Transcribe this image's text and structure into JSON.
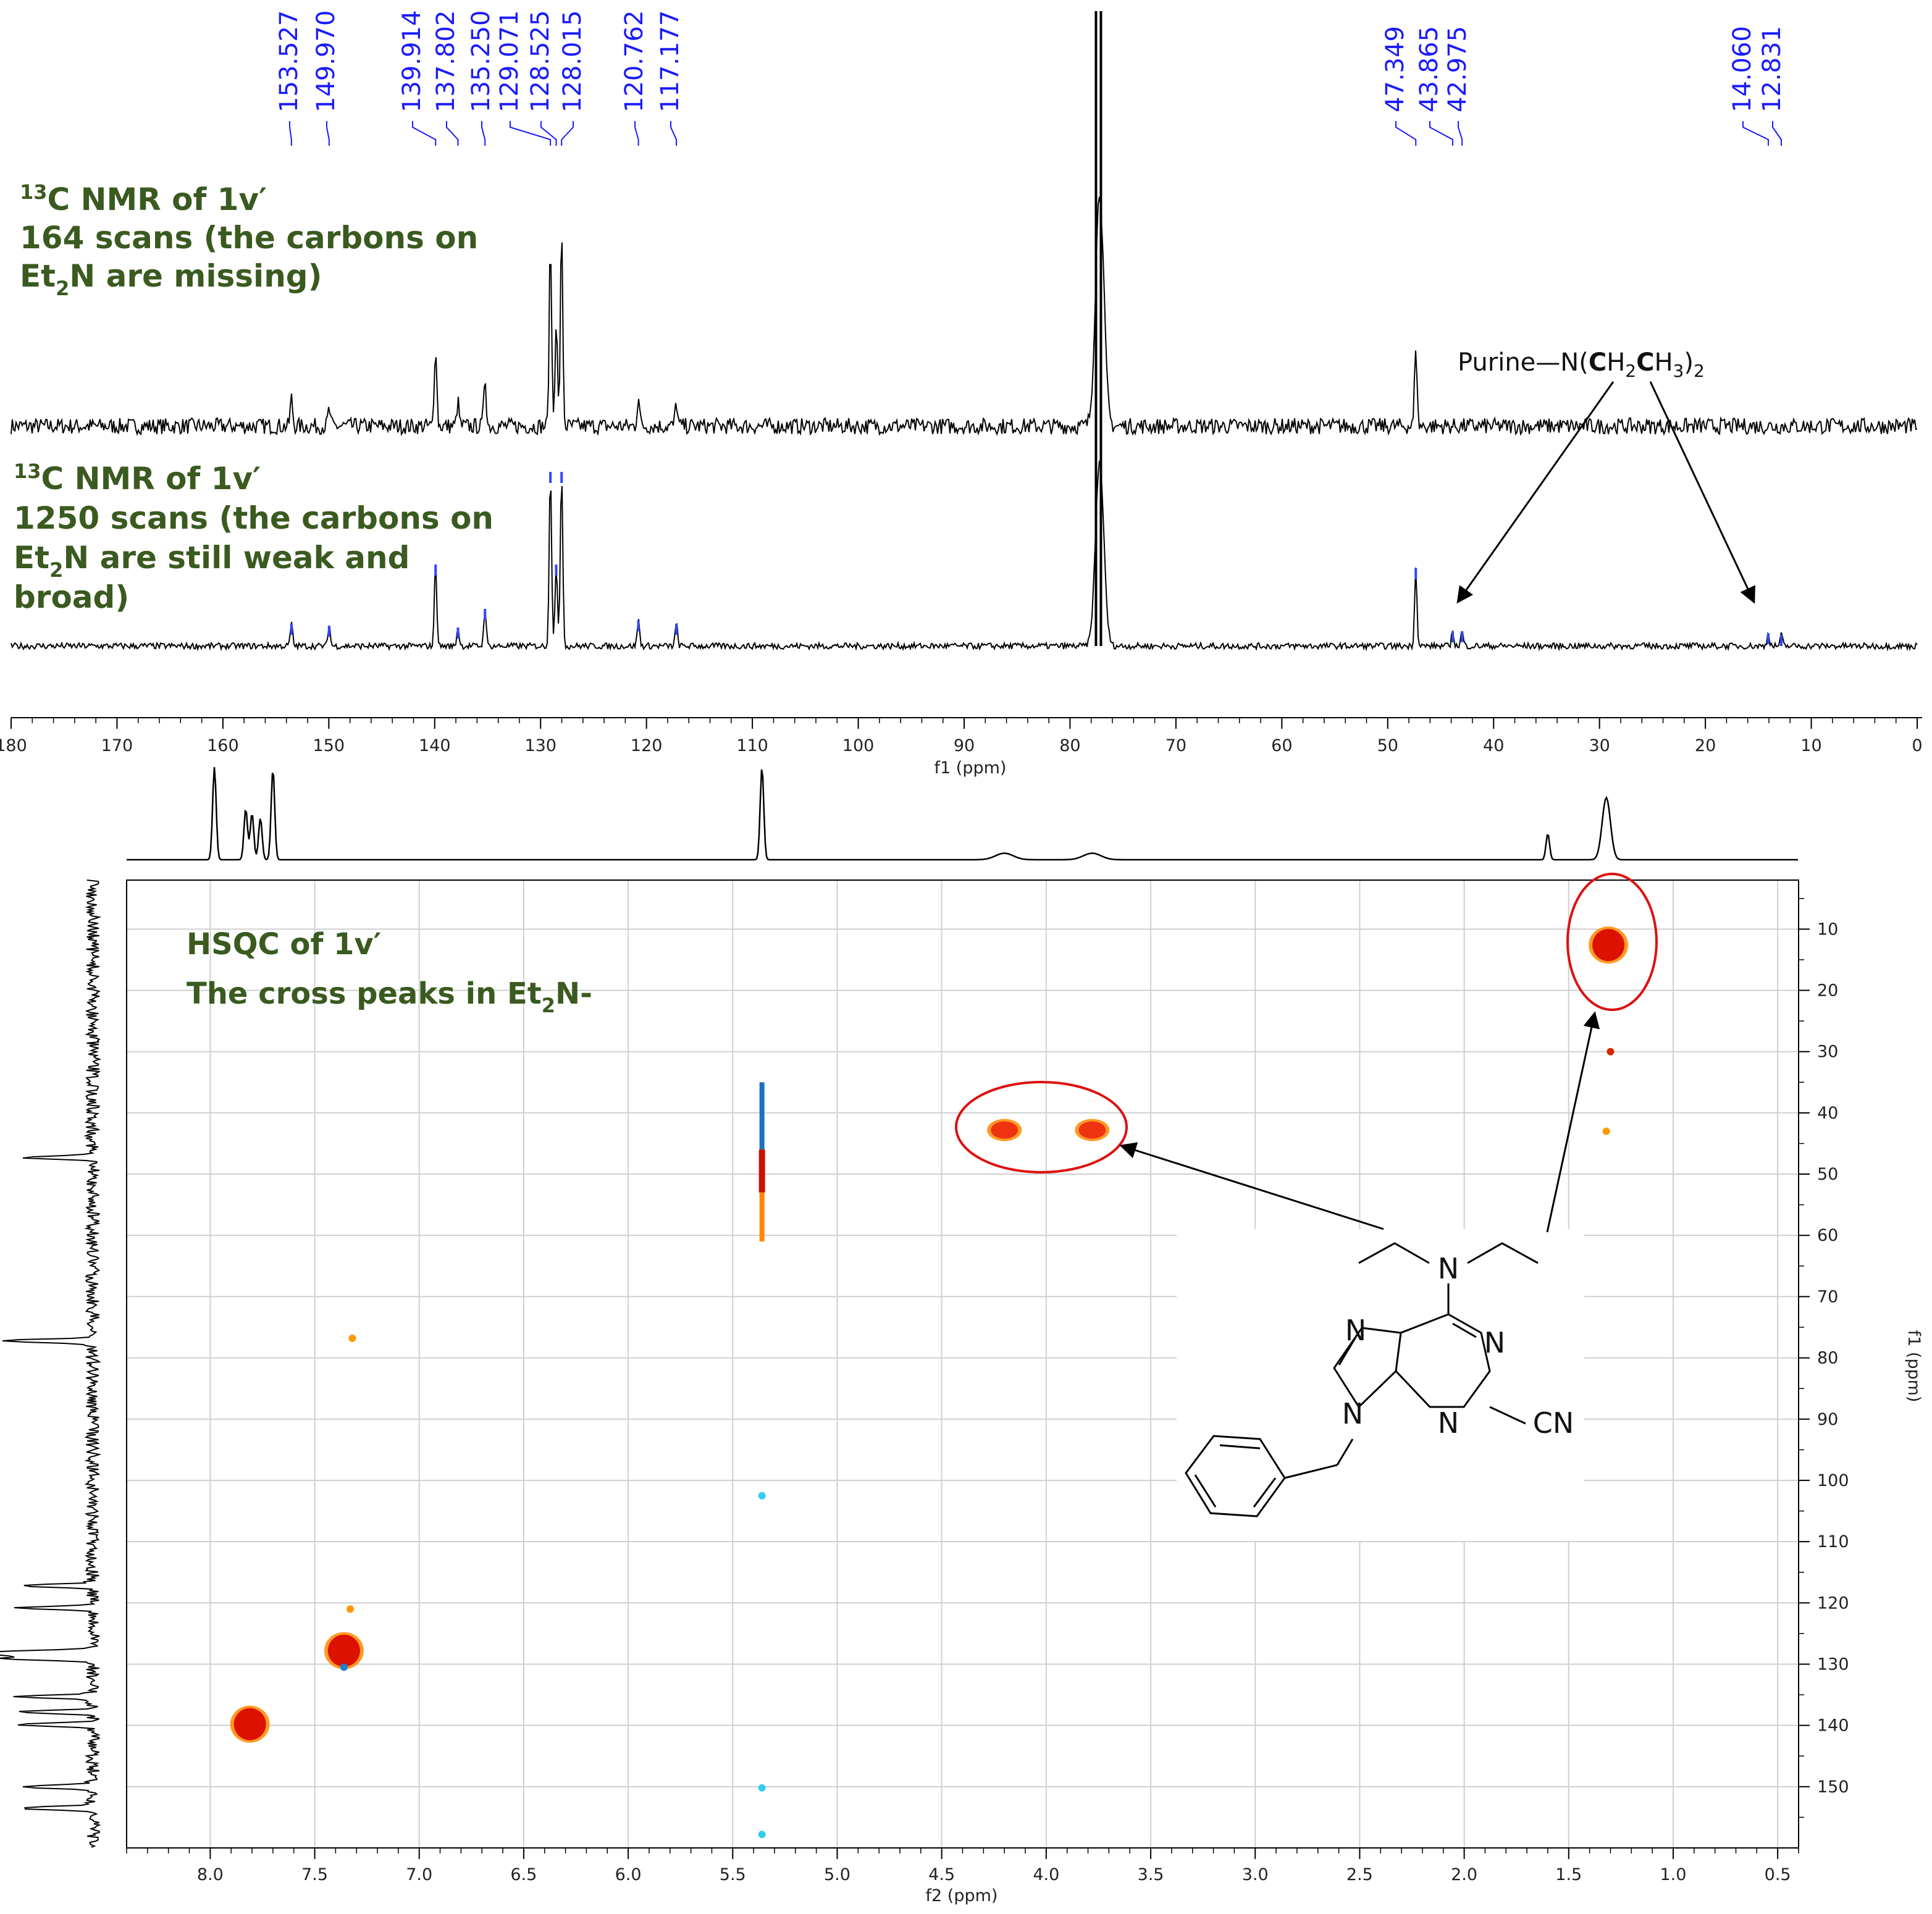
{
  "spectra": {
    "scan164": {
      "line1_sup": "13",
      "line1_rest": "C NMR of 1v′",
      "line2": "164 scans (the carbons on",
      "line3_pre": "Et",
      "line3_sub": "2",
      "line3_post": "N are missing)"
    },
    "scan1250": {
      "line1_sup": "13",
      "line1_rest": "C NMR of 1v′",
      "line2": "1250 scans (the carbons on",
      "line3_pre": "Et",
      "line3_sub": "2",
      "line3_post": "N are still weak and",
      "line4": "broad)"
    },
    "annotation": {
      "prefix": "Purine",
      "dash": "—",
      "n_open": "N(",
      "c1": "C",
      "h2": "H",
      "sub2": "2",
      "c2": "C",
      "h3": "H",
      "sub3": "3",
      "close": ")",
      "sub_outer": "2"
    }
  },
  "hsqc": {
    "title": "HSQC of 1v′",
    "subtitle_pre": "The cross peaks in Et",
    "subtitle_sub": "2",
    "subtitle_post": "N-"
  },
  "structure": {
    "n_amine": "N",
    "n1": "N",
    "n3": "N",
    "n7": "N",
    "n9": "N",
    "cn": "CN"
  },
  "chart_data": [
    {
      "type": "line",
      "subtype": "13C NMR spectrum stack",
      "xlabel": "f1  (ppm)",
      "xlim": [
        180,
        0
      ],
      "x_ticks": [
        "180",
        "170",
        "160",
        "150",
        "140",
        "130",
        "120",
        "110",
        "100",
        "90",
        "80",
        "70",
        "60",
        "50",
        "40",
        "30",
        "20",
        "10",
        "0"
      ],
      "peak_labels": [
        "153.527",
        "149.970",
        "139.914",
        "137.802",
        "135.250",
        "129.071",
        "128.525",
        "128.015",
        "120.762",
        "117.177",
        "47.349",
        "43.865",
        "42.975",
        "14.060",
        "12.831"
      ],
      "series": [
        {
          "peaks_ppm": [
            153.527,
            149.97,
            139.914,
            137.802,
            135.25,
            129.071,
            128.525,
            128.015,
            120.762,
            117.177,
            77.2,
            47.349
          ],
          "rel_heights": [
            0.12,
            0.07,
            0.35,
            0.1,
            0.22,
            0.78,
            0.45,
            0.82,
            0.13,
            0.1,
            1.0,
            0.35
          ]
        },
        {
          "peaks_ppm": [
            153.527,
            149.97,
            139.914,
            137.802,
            135.25,
            129.071,
            128.525,
            128.015,
            120.762,
            117.177,
            77.2,
            47.349,
            43.865,
            42.975,
            14.06,
            12.831
          ],
          "rel_heights": [
            0.12,
            0.11,
            0.44,
            0.1,
            0.2,
            0.94,
            0.44,
            0.94,
            0.14,
            0.12,
            1.0,
            0.42,
            0.08,
            0.08,
            0.07,
            0.06
          ]
        }
      ]
    },
    {
      "type": "scatter",
      "subtype": "HSQC 2D contour map",
      "xlabel": "f2  (ppm)",
      "ylabel": "f1  (ppm)",
      "xlim": [
        8.4,
        0.4
      ],
      "ylim": [
        2,
        160
      ],
      "x_ticks": [
        "8.0",
        "7.5",
        "7.0",
        "6.5",
        "6.0",
        "5.5",
        "5.0",
        "4.5",
        "4.0",
        "3.5",
        "3.0",
        "2.5",
        "2.0",
        "1.5",
        "1.0",
        "0.5"
      ],
      "y_ticks": [
        "10",
        "20",
        "30",
        "40",
        "50",
        "60",
        "70",
        "80",
        "90",
        "100",
        "110",
        "120",
        "130",
        "140",
        "150"
      ],
      "cross_peaks": [
        {
          "f2": 4.2,
          "f1": 42.8,
          "color": "#ee3311"
        },
        {
          "f2": 3.78,
          "f1": 42.8,
          "color": "#ee3311"
        },
        {
          "f2": 1.31,
          "f1": 12.6,
          "color": "#dd1100"
        },
        {
          "f2": 1.3,
          "f1": 30.0,
          "color": "#dd2200"
        },
        {
          "f2": 1.32,
          "f1": 43.0,
          "color": "#ff9900"
        },
        {
          "f2": 7.36,
          "f1": 127.8,
          "color": "#dd1100"
        },
        {
          "f2": 7.36,
          "f1": 130.5,
          "color": "#1f7fd0"
        },
        {
          "f2": 7.33,
          "f1": 121.0,
          "color": "#ff9900"
        },
        {
          "f2": 7.32,
          "f1": 76.8,
          "color": "#ff9900"
        },
        {
          "f2": 7.81,
          "f1": 139.8,
          "color": "#dd1100"
        },
        {
          "f2": 5.36,
          "f1": 102.5,
          "color": "#33ccee"
        },
        {
          "f2": 5.36,
          "f1": 150.2,
          "color": "#33ccee"
        },
        {
          "f2": 5.36,
          "f1": 157.8,
          "color": "#33ccee"
        }
      ],
      "solvent_streak": {
        "f2": 5.36,
        "f1_from": 35,
        "f1_to": 61
      },
      "f2_projection_peaks": [
        {
          "ppm": 7.98,
          "rel": 1.0
        },
        {
          "ppm": 7.83,
          "rel": 0.55
        },
        {
          "ppm": 7.8,
          "rel": 0.5
        },
        {
          "ppm": 7.76,
          "rel": 0.45
        },
        {
          "ppm": 7.7,
          "rel": 0.98
        },
        {
          "ppm": 5.36,
          "rel": 1.0
        },
        {
          "ppm": 4.2,
          "rel": 0.07
        },
        {
          "ppm": 3.78,
          "rel": 0.07
        },
        {
          "ppm": 1.6,
          "rel": 0.28
        },
        {
          "ppm": 1.32,
          "rel": 0.67
        }
      ],
      "f1_projection_peaks_ppm": [
        47.3,
        77.2,
        117.2,
        120.8,
        128.0,
        128.5,
        129.1,
        135.3,
        137.8,
        139.9,
        150.0,
        153.5
      ]
    }
  ]
}
